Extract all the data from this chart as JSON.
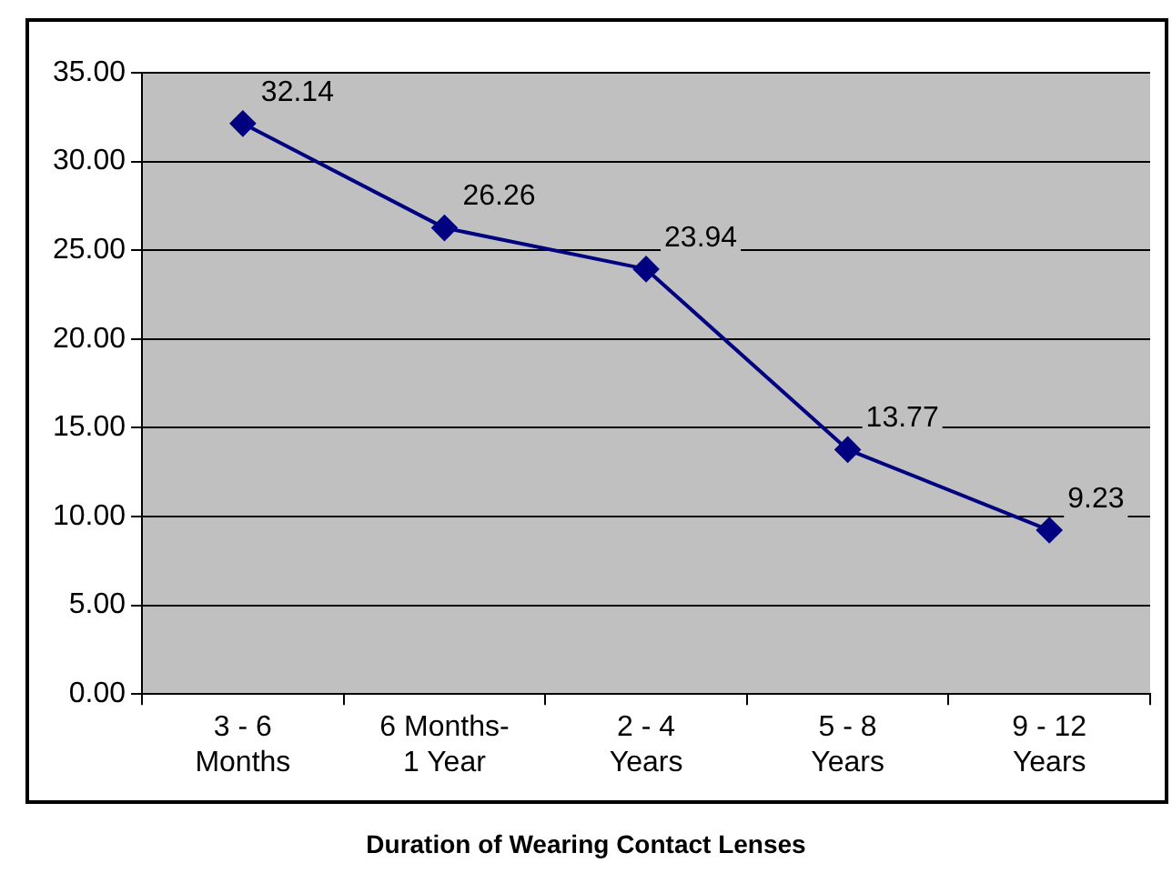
{
  "chart_data": {
    "type": "line",
    "xlabel": "Duration of Wearing Contact Lenses",
    "categories": [
      "3 - 6\nMonths",
      "6 Months-\n1 Year",
      "2 - 4\nYears",
      "5 - 8\nYears",
      "9 - 12\nYears"
    ],
    "series": [
      {
        "color": "#000080",
        "values": [
          32.14,
          26.26,
          23.94,
          13.77,
          9.23
        ]
      }
    ],
    "ylim": [
      0,
      35
    ],
    "yticks": [
      {
        "value": 0,
        "label": "0.00"
      },
      {
        "value": 5,
        "label": "5.00"
      },
      {
        "value": 10,
        "label": "10.00"
      },
      {
        "value": 15,
        "label": "15.00"
      },
      {
        "value": 20,
        "label": "20.00"
      },
      {
        "value": 25,
        "label": "25.00"
      },
      {
        "value": 30,
        "label": "30.00"
      },
      {
        "value": 35,
        "label": "35.00"
      }
    ],
    "grid": "y",
    "legend": false,
    "marker": "diamond",
    "line_style": "solid",
    "data_labels": true
  }
}
